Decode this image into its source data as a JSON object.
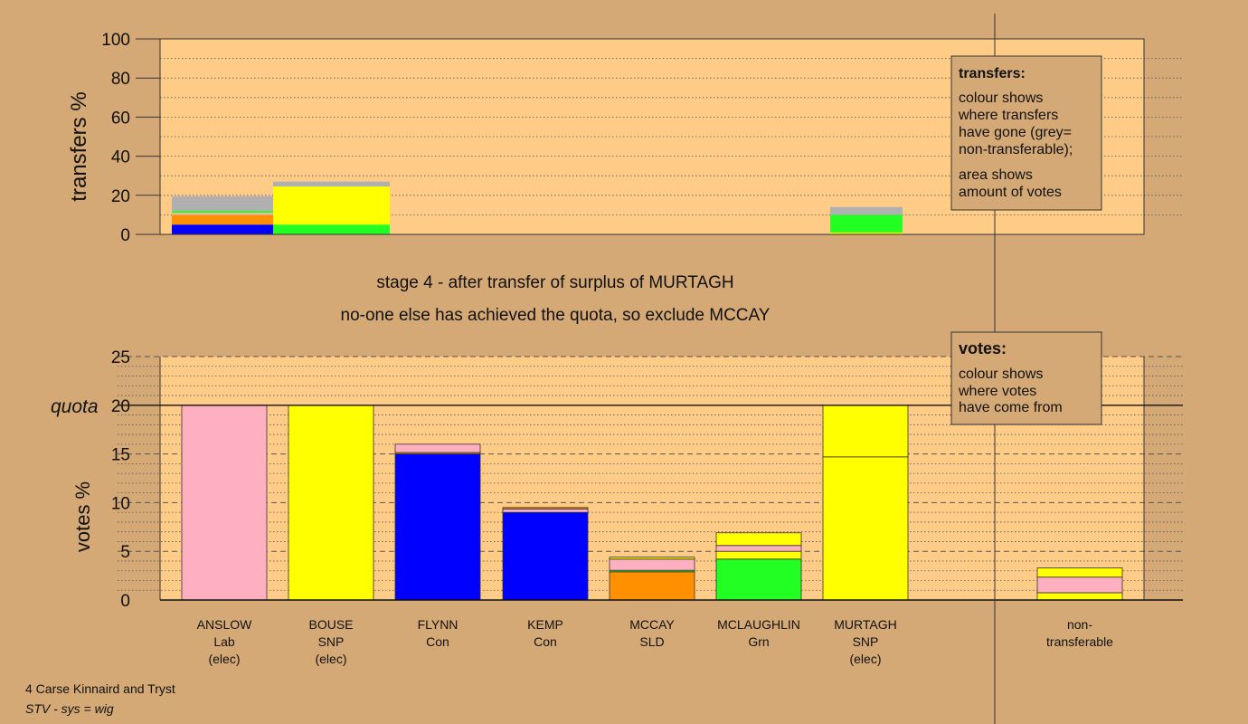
{
  "colors": {
    "background": "#d4a975",
    "plot_bg": "#ffcc88",
    "Lab": "#ffb0c0",
    "SNP": "#ffff00",
    "Con": "#0000ff",
    "SLD": "#ff9000",
    "Grn": "#22ff22",
    "nontransferable": "#b0b0b0"
  },
  "captions": {
    "stage_line": "stage 4 - after transfer of surplus of MURTAGH",
    "action_line": "no-one else has achieved the quota, so exclude MCCAY",
    "footer_ward": "4 Carse Kinnaird and Tryst",
    "footer_system": "STV - sys = wig"
  },
  "transfers_legend": {
    "title": "transfers:",
    "lines": [
      "colour shows",
      "where transfers",
      "have gone (grey=",
      "non-transferable);"
    ],
    "lines2": [
      "area shows",
      "amount of votes"
    ]
  },
  "votes_legend": {
    "title": "votes:",
    "lines": [
      "colour shows",
      "where votes",
      "have come from"
    ]
  },
  "chart_data": [
    {
      "type": "bar",
      "title": "",
      "ylabel": "transfers %",
      "ylim": [
        0,
        100
      ],
      "yticks": [
        "0",
        "20",
        "40",
        "60",
        "80",
        "100"
      ],
      "grid": "dotted",
      "columns": [
        {
          "label": "ANSLOW",
          "stack": [
            {
              "party": "Con",
              "value": 5
            },
            {
              "party": "SLD",
              "value": 5
            },
            {
              "party": "Lab",
              "value": 1
            },
            {
              "party": "Grn",
              "value": 1
            },
            {
              "party": "nontransferable",
              "value": 7.5
            }
          ]
        },
        {
          "label": "BOUSE",
          "stack": [
            {
              "party": "Grn",
              "value": 5
            },
            {
              "party": "SNP",
              "value": 19.5
            },
            {
              "party": "nontransferable",
              "value": 2.5
            }
          ]
        },
        {
          "label": "MURTAGH",
          "stack": [
            {
              "party": "SNP",
              "value": 1
            },
            {
              "party": "Grn",
              "value": 9
            },
            {
              "party": "nontransferable",
              "value": 4
            }
          ]
        }
      ]
    },
    {
      "type": "bar",
      "title": "",
      "ylabel": "votes %",
      "ylim": [
        0,
        25
      ],
      "yticks": [
        "0",
        "5",
        "10",
        "15",
        "20",
        "25"
      ],
      "quota": 20,
      "quota_label": "quota",
      "grid": "dashed",
      "candidates": [
        {
          "name": "ANSLOW",
          "party": "Lab",
          "status": "(elec)",
          "segments": [
            {
              "party": "Lab",
              "value": 20
            }
          ]
        },
        {
          "name": "BOUSE",
          "party": "SNP",
          "status": "(elec)",
          "segments": [
            {
              "party": "SNP",
              "value": 20
            }
          ]
        },
        {
          "name": "FLYNN",
          "party": "Con",
          "status": "",
          "segments": [
            {
              "party": "Con",
              "value": 15
            },
            {
              "party": "SLD",
              "value": 0.15
            },
            {
              "party": "Lab",
              "value": 0.85
            }
          ]
        },
        {
          "name": "KEMP",
          "party": "Con",
          "status": "",
          "segments": [
            {
              "party": "Con",
              "value": 9
            },
            {
              "party": "Lab",
              "value": 0.35
            },
            {
              "party": "SLD",
              "value": 0.15
            }
          ]
        },
        {
          "name": "MCCAY",
          "party": "SLD",
          "status": "",
          "segments": [
            {
              "party": "SLD",
              "value": 2.9
            },
            {
              "party": "Grn",
              "value": 0.15
            },
            {
              "party": "Lab",
              "value": 1.15
            },
            {
              "party": "SNP",
              "value": 0.2
            }
          ]
        },
        {
          "name": "MCLAUGHLIN",
          "party": "Grn",
          "status": "",
          "segments": [
            {
              "party": "Grn",
              "value": 4.2
            },
            {
              "party": "SNP",
              "value": 0.8
            },
            {
              "party": "Lab",
              "value": 0.6
            },
            {
              "party": "SNP",
              "value": 1.3
            }
          ]
        },
        {
          "name": "MURTAGH",
          "party": "SNP",
          "status": "(elec)",
          "segments": [
            {
              "party": "SNP",
              "value": 14.7
            },
            {
              "party": "SNP",
              "value": 5.3
            }
          ]
        }
      ],
      "nontransferable": {
        "label_lines": [
          "non-",
          "transferable"
        ],
        "segments": [
          {
            "party": "SNP",
            "value": 0.75
          },
          {
            "party": "Lab",
            "value": 1.6
          },
          {
            "party": "SNP",
            "value": 0.95
          }
        ]
      }
    }
  ]
}
